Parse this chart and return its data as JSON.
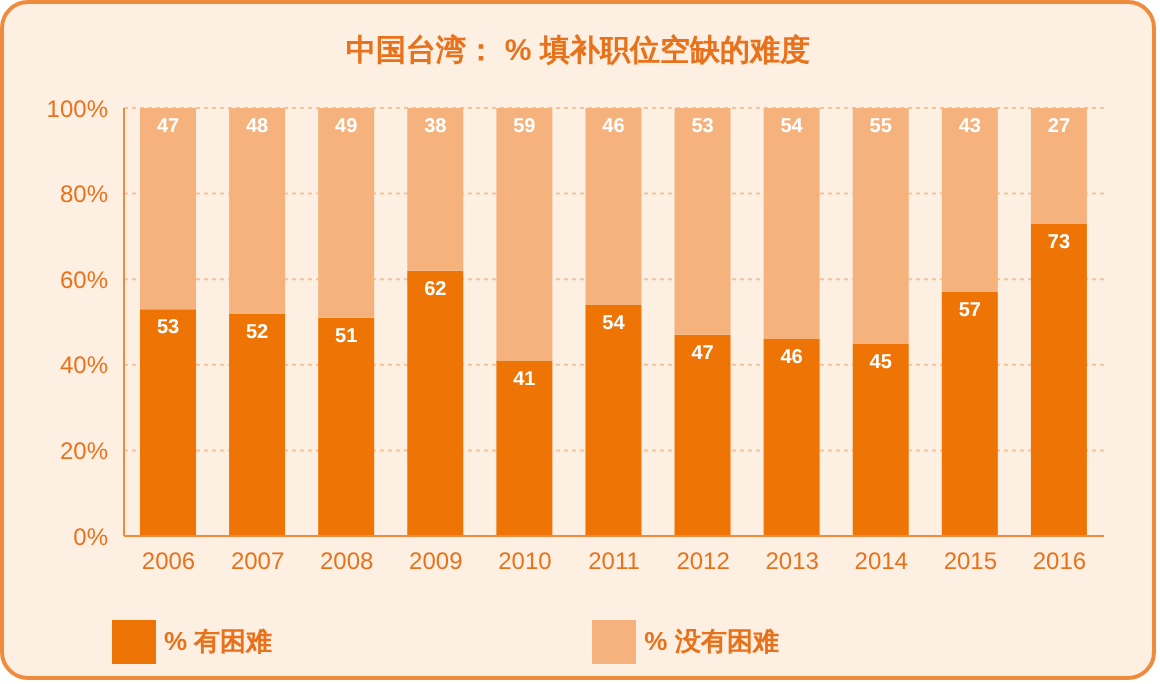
{
  "chart_data": {
    "type": "bar",
    "title": "中国台湾： % 填补职位空缺的难度",
    "stacked": true,
    "categories": [
      "2006",
      "2007",
      "2008",
      "2009",
      "2010",
      "2011",
      "2012",
      "2013",
      "2014",
      "2015",
      "2016"
    ],
    "series": [
      {
        "name": "% 有困难",
        "color": "#ee7405",
        "values": [
          53,
          52,
          51,
          62,
          41,
          54,
          47,
          46,
          45,
          57,
          73
        ]
      },
      {
        "name": "% 没有困难",
        "color": "#f5b27c",
        "values": [
          47,
          48,
          49,
          38,
          59,
          46,
          53,
          54,
          55,
          43,
          27
        ]
      }
    ],
    "ylim": [
      0,
      100
    ],
    "yticks": [
      {
        "value": 0,
        "label": "0%"
      },
      {
        "value": 20,
        "label": "20%"
      },
      {
        "value": 40,
        "label": "40%"
      },
      {
        "value": 60,
        "label": "60%"
      },
      {
        "value": 80,
        "label": "80%"
      },
      {
        "value": 100,
        "label": "100%"
      }
    ],
    "grid": "y",
    "legend": "bottom",
    "data_labels": true
  }
}
